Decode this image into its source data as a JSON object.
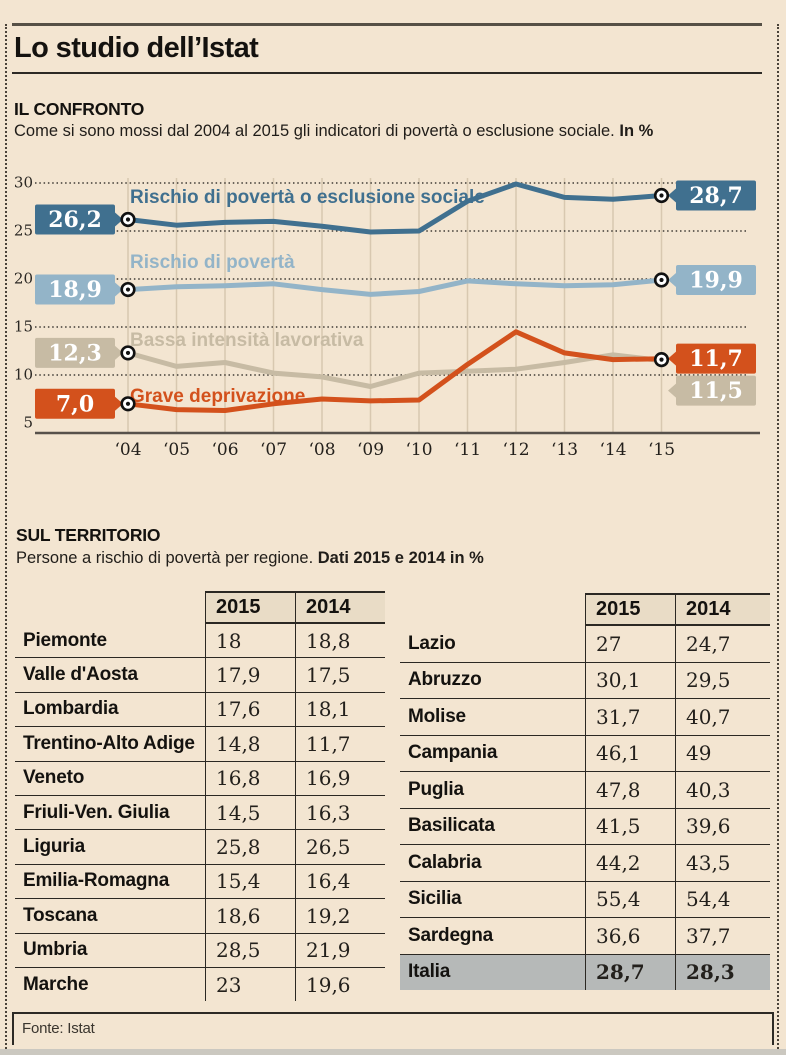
{
  "header": {
    "title": "Lo studio dell’Istat"
  },
  "confronto": {
    "heading": "IL CONFRONTO",
    "subtitle": "Come si sono mossi dal 2004 al 2015 gli indicatori di povertà o esclusione sociale.",
    "subtitle_bold": "In %"
  },
  "chart_data": {
    "type": "line",
    "x": [
      "‘04",
      "‘05",
      "‘06",
      "‘07",
      "‘08",
      "‘09",
      "‘10",
      "‘11",
      "‘12",
      "‘13",
      "‘14",
      "‘15"
    ],
    "yticks": [
      30,
      25,
      20,
      15,
      10,
      5
    ],
    "ylim": [
      4,
      31
    ],
    "legend_position": "labels-on-lines",
    "grid": {
      "horizontal": "dotted",
      "vertical": "solid"
    },
    "series": [
      {
        "name": "Rischio di povertà o esclusione sociale",
        "color": "#40708f",
        "start_label": "26,2",
        "end_label": "28,7",
        "values": [
          26.2,
          25.6,
          25.9,
          26.0,
          25.5,
          24.9,
          25.0,
          28.1,
          29.9,
          28.5,
          28.3,
          28.7
        ]
      },
      {
        "name": "Rischio di povertà",
        "color": "#93b4c8",
        "start_label": "18,9",
        "end_label": "19,9",
        "values": [
          18.9,
          19.2,
          19.3,
          19.5,
          18.9,
          18.4,
          18.7,
          19.8,
          19.5,
          19.3,
          19.4,
          19.9
        ]
      },
      {
        "name": "Bassa intensità lavorativa",
        "color": "#c7bba4",
        "start_label": "12,3",
        "end_label": "11,5",
        "values": [
          12.3,
          10.9,
          11.3,
          10.2,
          9.8,
          8.8,
          10.2,
          10.4,
          10.6,
          11.3,
          12.1,
          11.5
        ]
      },
      {
        "name": "Grave deprivazione",
        "color": "#d3511c",
        "start_label": "7,0",
        "end_label": "11,7",
        "values": [
          7.0,
          6.4,
          6.3,
          7.0,
          7.5,
          7.3,
          7.4,
          11.1,
          14.5,
          12.3,
          11.6,
          11.7
        ]
      }
    ]
  },
  "territorio": {
    "heading": "SUL TERRITORIO",
    "subtitle": "Persone a rischio di povertà per regione.",
    "subtitle_bold": "Dati 2015 e 2014 in %",
    "columns": [
      "2015",
      "2014"
    ],
    "left_rows": [
      {
        "region": "Piemonte",
        "v2015": "18",
        "v2014": "18,8"
      },
      {
        "region": "Valle d'Aosta",
        "v2015": "17,9",
        "v2014": "17,5"
      },
      {
        "region": "Lombardia",
        "v2015": "17,6",
        "v2014": "18,1"
      },
      {
        "region": "Trentino-Alto Adige",
        "v2015": "14,8",
        "v2014": "11,7"
      },
      {
        "region": "Veneto",
        "v2015": "16,8",
        "v2014": "16,9"
      },
      {
        "region": "Friuli-Ven. Giulia",
        "v2015": "14,5",
        "v2014": "16,3"
      },
      {
        "region": "Liguria",
        "v2015": "25,8",
        "v2014": "26,5"
      },
      {
        "region": "Emilia-Romagna",
        "v2015": "15,4",
        "v2014": "16,4"
      },
      {
        "region": "Toscana",
        "v2015": "18,6",
        "v2014": "19,2"
      },
      {
        "region": "Umbria",
        "v2015": "28,5",
        "v2014": "21,9"
      },
      {
        "region": "Marche",
        "v2015": "23",
        "v2014": "19,6"
      }
    ],
    "right_rows": [
      {
        "region": "Lazio",
        "v2015": "27",
        "v2014": "24,7"
      },
      {
        "region": "Abruzzo",
        "v2015": "30,1",
        "v2014": "29,5"
      },
      {
        "region": "Molise",
        "v2015": "31,7",
        "v2014": "40,7"
      },
      {
        "region": "Campania",
        "v2015": "46,1",
        "v2014": "49"
      },
      {
        "region": "Puglia",
        "v2015": "47,8",
        "v2014": "40,3"
      },
      {
        "region": "Basilicata",
        "v2015": "41,5",
        "v2014": "39,6"
      },
      {
        "region": "Calabria",
        "v2015": "44,2",
        "v2014": "43,5"
      },
      {
        "region": "Sicilia",
        "v2015": "55,4",
        "v2014": "54,4"
      },
      {
        "region": "Sardegna",
        "v2015": "36,6",
        "v2014": "37,7"
      },
      {
        "region": "Italia",
        "v2015": "28,7",
        "v2014": "28,3",
        "highlight": true
      }
    ]
  },
  "footer": {
    "source": "Fonte: Istat"
  },
  "colors": {
    "background": "#f3e5d1",
    "rule_dark": "#2d2a25",
    "rule_thick": "#565046",
    "grid_vertical": "#d8c8b0",
    "grid_dotted": "#3f3b35",
    "axis_base": "#57514b",
    "table_border": "#2b2823",
    "table_header_bg": "#e9dcc6",
    "highlight_row_bg": "#b6b9b8",
    "series_dark_blue": "#40708f",
    "series_light_blue": "#93b4c8",
    "series_tan": "#c7bba4",
    "series_orange": "#d3511c"
  }
}
